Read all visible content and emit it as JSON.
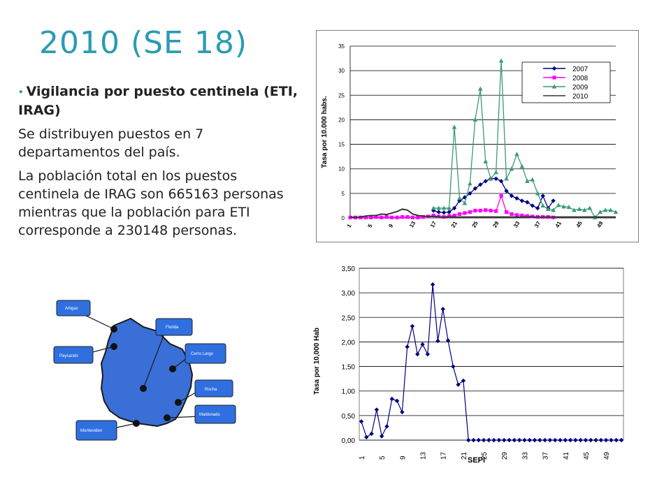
{
  "slide": {
    "title": "2010 (SE 18)",
    "bullets": [
      "Vigilancia por puesto centinela (ETI, IRAG)",
      "Se distribuyen puestos en 7 departamentos del país.",
      "La población total en los puestos centinela de IRAG son 665163 personas mientras que la población para ETI corresponde a 230148 personas."
    ]
  },
  "map": {
    "labels": [
      "Artigas",
      "Paysandú",
      "Florida",
      "Cerro Largo",
      "Rocha",
      "Maldonado",
      "Montevideo"
    ],
    "colors": {
      "box": "#2f6fe0",
      "land": "#3a6fd8",
      "border": "#1a1a1a",
      "dot": "#111111"
    }
  },
  "chart_data": [
    {
      "type": "line",
      "ylabel": "Tasa por 10.000 habs.",
      "xlabel": "",
      "ylim": [
        0,
        35
      ],
      "yticks": [
        0,
        5,
        10,
        15,
        20,
        25,
        30,
        35
      ],
      "xlim": [
        1,
        52
      ],
      "xticks": [
        1,
        5,
        9,
        13,
        17,
        21,
        25,
        29,
        33,
        37,
        41,
        45,
        49
      ],
      "legend": "top-right",
      "grid": true,
      "series": [
        {
          "name": "2007",
          "color": "#000080",
          "marker": "diamond",
          "x": [
            17,
            18,
            19,
            20,
            21,
            22,
            23,
            24,
            25,
            26,
            27,
            28,
            29,
            30,
            31,
            32,
            33,
            34,
            35,
            36,
            37,
            38,
            39,
            40
          ],
          "y": [
            1.5,
            1.2,
            1.1,
            1.2,
            2,
            3.5,
            4.2,
            5,
            6,
            6.8,
            7.5,
            8,
            8,
            7.5,
            5.5,
            4.5,
            4,
            3.5,
            3.2,
            2.5,
            2,
            4.5,
            2,
            3.5
          ]
        },
        {
          "name": "2008",
          "color": "#ff00ff",
          "marker": "square",
          "x": [
            1,
            2,
            3,
            4,
            5,
            6,
            7,
            8,
            9,
            10,
            11,
            12,
            13,
            14,
            15,
            16,
            17,
            18,
            19,
            20,
            21,
            22,
            23,
            24,
            25,
            26,
            27,
            28,
            29,
            30,
            31,
            32,
            33,
            34,
            35,
            36,
            37,
            38,
            39,
            40
          ],
          "y": [
            0.1,
            0.1,
            0.1,
            0.1,
            0.1,
            0.2,
            0.1,
            0.2,
            0.1,
            0.1,
            0.2,
            0.2,
            0.1,
            0.1,
            0.2,
            0.3,
            0.5,
            0.3,
            0.2,
            0.4,
            0.5,
            0.8,
            1,
            1.2,
            1.5,
            1.5,
            1.6,
            1.5,
            1.4,
            4.5,
            1.2,
            0.8,
            0.6,
            0.5,
            0.4,
            0.3,
            0.2,
            0.2,
            0.2,
            0.1
          ]
        },
        {
          "name": "2009",
          "color": "#3c9a78",
          "marker": "triangle",
          "x": [
            17,
            18,
            19,
            20,
            21,
            22,
            23,
            24,
            25,
            26,
            27,
            28,
            29,
            30,
            31,
            32,
            33,
            34,
            35,
            36,
            37,
            38,
            39,
            40,
            41,
            42,
            43,
            44,
            45,
            46,
            47,
            48,
            49,
            50,
            51,
            52
          ],
          "y": [
            2,
            2,
            2,
            2,
            18.5,
            4,
            3,
            7,
            20,
            26.3,
            11.5,
            8,
            9.3,
            32,
            8,
            10,
            13,
            10.5,
            7.5,
            7.8,
            5,
            2.5,
            1.8,
            1.6,
            2.6,
            2.3,
            2.2,
            1.6,
            1.8,
            1.6,
            2,
            0.1,
            1.2,
            1.6,
            1.6,
            1.2
          ]
        },
        {
          "name": "2010",
          "color": "#333333",
          "marker": "none",
          "x": [
            1,
            2,
            3,
            4,
            5,
            6,
            7,
            8,
            9,
            10,
            11,
            12,
            13,
            14,
            15,
            16,
            17,
            18,
            19,
            20,
            21,
            22,
            23,
            24,
            25,
            26,
            27,
            28,
            29,
            30,
            31,
            32,
            33,
            34,
            35,
            36,
            37,
            38,
            39,
            40,
            41,
            42,
            43,
            44,
            45,
            46,
            47,
            48,
            49,
            50,
            51,
            52
          ],
          "y": [
            0.2,
            0.1,
            0.2,
            0.4,
            0.5,
            0.5,
            0.8,
            0.7,
            1,
            1.3,
            1.8,
            1.6,
            0.8,
            0.5,
            0.4,
            0.3,
            0.3,
            0.2,
            0.2,
            0.2,
            0.2,
            0.2,
            0.2,
            0.2,
            0.2,
            0.2,
            0.2,
            0.2,
            0.2,
            0.2,
            0.2,
            0.2,
            0.2,
            0.2,
            0.2,
            0.2,
            0.2,
            0.2,
            0.2,
            0.2,
            0.2,
            0.2,
            0.2,
            0.2,
            0.2,
            0.2,
            0.2,
            0.2,
            0.2,
            0.2,
            0.2,
            0.2
          ]
        }
      ]
    },
    {
      "type": "line",
      "ylabel": "Tasa por 10,000 Hab",
      "xlabel": "SEPI",
      "ylim": [
        0,
        3.5
      ],
      "yticks": [
        "0,00",
        "0,50",
        "1,00",
        "1,50",
        "2,00",
        "2,50",
        "3,00",
        "3,50"
      ],
      "xlim": [
        1,
        52
      ],
      "xticks": [
        1,
        5,
        9,
        13,
        17,
        21,
        25,
        29,
        33,
        37,
        41,
        45,
        49
      ],
      "grid": true,
      "series": [
        {
          "color": "#000080",
          "marker": "diamond",
          "x": [
            1,
            2,
            3,
            4,
            5,
            6,
            7,
            8,
            9,
            10,
            11,
            12,
            13,
            14,
            15,
            16,
            17,
            18,
            19,
            20,
            21,
            22,
            23,
            24,
            25,
            26,
            27,
            28,
            29,
            30,
            31,
            32,
            33,
            34,
            35,
            36,
            37,
            38,
            39,
            40,
            41,
            42,
            43,
            44,
            45,
            46,
            47,
            48,
            49,
            50,
            51,
            52
          ],
          "y": [
            0.38,
            0.06,
            0.13,
            0.62,
            0.08,
            0.28,
            0.84,
            0.8,
            0.57,
            1.9,
            2.32,
            1.75,
            1.95,
            1.75,
            3.17,
            2.02,
            2.67,
            2.03,
            1.5,
            1.13,
            1.21,
            0,
            0,
            0,
            0,
            0,
            0,
            0,
            0,
            0,
            0,
            0,
            0,
            0,
            0,
            0,
            0,
            0,
            0,
            0,
            0,
            0,
            0,
            0,
            0,
            0,
            0,
            0,
            0,
            0,
            0,
            0
          ]
        }
      ]
    }
  ]
}
